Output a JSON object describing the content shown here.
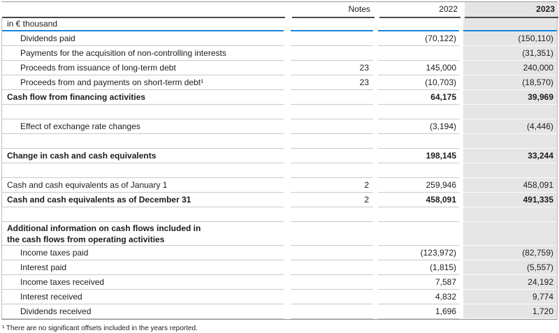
{
  "table": {
    "unit_label": "in € thousand",
    "columns": {
      "notes": "Notes",
      "y2022": "2022",
      "y2023": "2023"
    },
    "rows": [
      {
        "style": "data",
        "indent": true,
        "label": "Dividends paid",
        "notes": "",
        "y2022": "(70,122)",
        "y2023": "(150,110)"
      },
      {
        "style": "data",
        "indent": true,
        "label": "Payments for the acquisition of non-controlling interests",
        "notes": "",
        "y2022": "",
        "y2023": "(31,351)"
      },
      {
        "style": "data",
        "indent": true,
        "label": "Proceeds from issuance of long-term debt",
        "notes": "23",
        "y2022": "145,000",
        "y2023": "240,000"
      },
      {
        "style": "data",
        "indent": true,
        "label": "Proceeds from and payments on short-term debt¹",
        "notes": "23",
        "y2022": "(10,703)",
        "y2023": "(18,570)"
      },
      {
        "style": "total",
        "indent": false,
        "label": "Cash flow from financing activities",
        "notes": "",
        "y2022": "64,175",
        "y2023": "39,969"
      },
      {
        "style": "spacer",
        "indent": false,
        "label": "",
        "notes": "",
        "y2022": "",
        "y2023": ""
      },
      {
        "style": "data",
        "indent": true,
        "label": "Effect of exchange rate changes",
        "notes": "",
        "y2022": "(3,194)",
        "y2023": "(4,446)"
      },
      {
        "style": "spacer",
        "indent": false,
        "label": "",
        "notes": "",
        "y2022": "",
        "y2023": ""
      },
      {
        "style": "total",
        "indent": false,
        "label": "Change in cash and cash equivalents",
        "notes": "",
        "y2022": "198,145",
        "y2023": "33,244"
      },
      {
        "style": "spacer",
        "indent": false,
        "label": "",
        "notes": "",
        "y2022": "",
        "y2023": ""
      },
      {
        "style": "plain",
        "indent": false,
        "label": "Cash and cash equivalents as of January 1",
        "notes": "2",
        "y2022": "259,946",
        "y2023": "458,091"
      },
      {
        "style": "total",
        "indent": false,
        "label": "Cash and cash equivalents as of December 31",
        "notes": "2",
        "y2022": "458,091",
        "y2023": "491,335"
      },
      {
        "style": "spacer",
        "indent": false,
        "label": "",
        "notes": "",
        "y2022": "",
        "y2023": ""
      },
      {
        "style": "section",
        "indent": false,
        "label": "Additional information on cash flows included in\nthe cash flows from operating activities",
        "notes": "",
        "y2022": "",
        "y2023": ""
      },
      {
        "style": "data",
        "indent": true,
        "label": "Income taxes paid",
        "notes": "",
        "y2022": "(123,972)",
        "y2023": "(82,759)"
      },
      {
        "style": "data",
        "indent": true,
        "label": "Interest paid",
        "notes": "",
        "y2022": "(1,815)",
        "y2023": "(5,557)"
      },
      {
        "style": "data",
        "indent": true,
        "label": "Income taxes received",
        "notes": "",
        "y2022": "7,587",
        "y2023": "24,192"
      },
      {
        "style": "data",
        "indent": true,
        "label": "Interest received",
        "notes": "",
        "y2022": "4,832",
        "y2023": "9,774"
      },
      {
        "style": "data",
        "indent": true,
        "label": "Dividends received",
        "notes": "",
        "y2022": "1,696",
        "y2023": "1,720"
      }
    ],
    "footnote": "¹ There are no significant offsets included in the years reported."
  },
  "colors": {
    "accent_blue": "#1585dd",
    "highlight_column_bg": "#e5e5e5",
    "separator": "#c9c9c9",
    "header_rule": "#474747",
    "outer_border": "#9a9a9a"
  }
}
